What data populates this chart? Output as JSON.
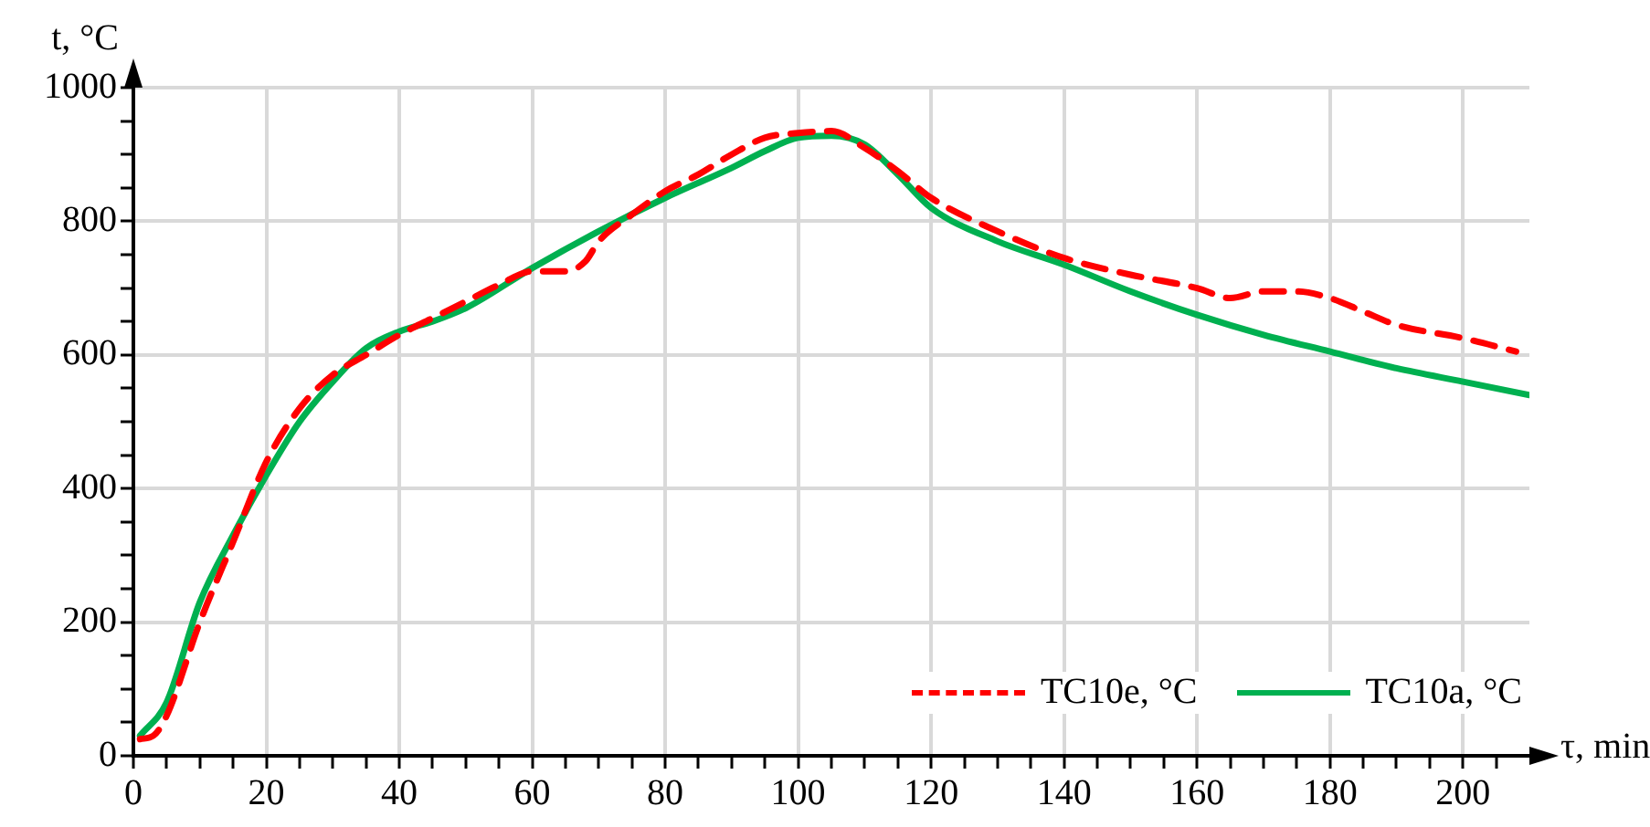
{
  "chart_data": {
    "type": "line",
    "xlabel": "τ, min",
    "ylabel": "t, °C",
    "xlim": [
      0,
      210
    ],
    "ylim": [
      0,
      1000
    ],
    "xticks": [
      0,
      {
        "value": 5,
        "label": null
      },
      {
        "value": 10,
        "label": null
      },
      {
        "value": 15,
        "label": null
      },
      20,
      {
        "value": 25,
        "label": null
      },
      {
        "value": 30,
        "label": null
      },
      {
        "value": 35,
        "label": null
      },
      40,
      {
        "value": 45,
        "label": null
      },
      {
        "value": 50,
        "label": null
      },
      {
        "value": 55,
        "label": null
      },
      60,
      {
        "value": 65,
        "label": null
      },
      {
        "value": 70,
        "label": null
      },
      {
        "value": 75,
        "label": null
      },
      80,
      {
        "value": 85,
        "label": null
      },
      {
        "value": 90,
        "label": null
      },
      {
        "value": 95,
        "label": null
      },
      100,
      {
        "value": 105,
        "label": null
      },
      {
        "value": 110,
        "label": null
      },
      {
        "value": 115,
        "label": null
      },
      120,
      {
        "value": 125,
        "label": null
      },
      {
        "value": 130,
        "label": null
      },
      {
        "value": 135,
        "label": null
      },
      140,
      {
        "value": 145,
        "label": null
      },
      {
        "value": 150,
        "label": null
      },
      {
        "value": 155,
        "label": null
      },
      160,
      {
        "value": 165,
        "label": null
      },
      {
        "value": 170,
        "label": null
      },
      {
        "value": 175,
        "label": null
      },
      180,
      {
        "value": 185,
        "label": null
      },
      {
        "value": 190,
        "label": null
      },
      {
        "value": 195,
        "label": null
      },
      200,
      {
        "value": 205,
        "label": null
      }
    ],
    "yticks": [
      0,
      {
        "value": 50,
        "label": null
      },
      {
        "value": 100,
        "label": null
      },
      {
        "value": 150,
        "label": null
      },
      200,
      {
        "value": 250,
        "label": null
      },
      {
        "value": 300,
        "label": null
      },
      {
        "value": 350,
        "label": null
      },
      400,
      {
        "value": 450,
        "label": null
      },
      {
        "value": 500,
        "label": null
      },
      {
        "value": 550,
        "label": null
      },
      600,
      {
        "value": 650,
        "label": null
      },
      {
        "value": 700,
        "label": null
      },
      {
        "value": 750,
        "label": null
      },
      800,
      {
        "value": 850,
        "label": null
      },
      {
        "value": 900,
        "label": null
      },
      {
        "value": 950,
        "label": null
      },
      1000
    ],
    "grid": true,
    "legend": "bottom right",
    "marker": "none",
    "series": [
      {
        "name": "TC10e, °C",
        "color": "#ff0000",
        "line_style": "dashed",
        "x": [
          1,
          3,
          5,
          10,
          15,
          20,
          25,
          30,
          35,
          40,
          45,
          50,
          55,
          60,
          65,
          68,
          70,
          75,
          80,
          85,
          90,
          95,
          100,
          105,
          110,
          115,
          120,
          130,
          140,
          150,
          160,
          165,
          170,
          175,
          180,
          185,
          190,
          200,
          208
        ],
        "values": [
          25,
          30,
          60,
          200,
          320,
          440,
          520,
          570,
          600,
          630,
          655,
          680,
          705,
          725,
          725,
          740,
          770,
          810,
          845,
          870,
          900,
          925,
          932,
          935,
          910,
          875,
          835,
          785,
          745,
          720,
          700,
          685,
          695,
          695,
          685,
          665,
          645,
          625,
          605
        ]
      },
      {
        "name": "TC10a, °C",
        "color": "#00b050",
        "line_style": "solid",
        "x": [
          1,
          5,
          10,
          15,
          20,
          25,
          30,
          35,
          40,
          45,
          50,
          60,
          70,
          80,
          90,
          95,
          100,
          105,
          110,
          115,
          120,
          130,
          140,
          150,
          160,
          170,
          180,
          190,
          200,
          210
        ],
        "values": [
          30,
          80,
          230,
          330,
          420,
          500,
          560,
          610,
          635,
          650,
          670,
          730,
          785,
          835,
          880,
          905,
          925,
          928,
          915,
          870,
          820,
          770,
          735,
          695,
          660,
          630,
          605,
          580,
          560,
          540
        ]
      }
    ]
  }
}
